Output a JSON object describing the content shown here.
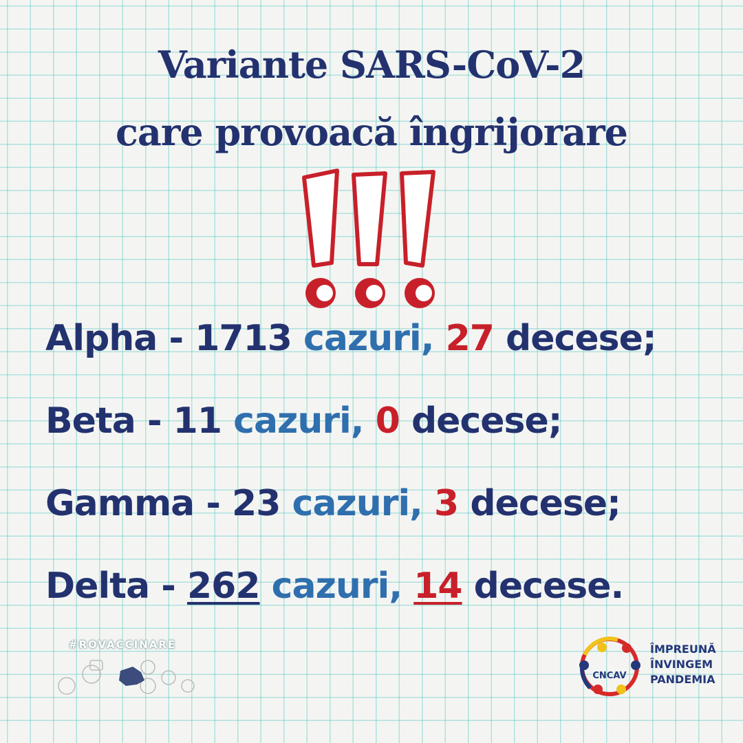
{
  "title": {
    "line1": "Variante SARS-CoV-2",
    "line2": "care provoacă îngrijorare"
  },
  "decoration_icon": "triple-exclamation-icon",
  "variants": [
    {
      "name": "Alpha",
      "sep": " - ",
      "cases": "1713",
      "cases_label": " cazuri,",
      "deaths": "27",
      "deaths_label": " decese;",
      "underlined": false
    },
    {
      "name": "Beta",
      "sep": " - ",
      "cases": "11",
      "cases_label": " cazuri,",
      "deaths": "0",
      "deaths_label": " decese;",
      "underlined": false
    },
    {
      "name": "Gamma",
      "sep": " - ",
      "cases": "23",
      "cases_label": " cazuri,",
      "deaths": "3",
      "deaths_label": " decese;",
      "underlined": false
    },
    {
      "name": "Delta",
      "sep": " - ",
      "cases": "262",
      "cases_label": " cazuri,",
      "deaths": "14",
      "deaths_label": " decese.",
      "underlined": true
    }
  ],
  "footer": {
    "hashtag": "#ROVACCINARE",
    "logo_text": "CNCAV",
    "slogan": [
      "ÎMPREUNĂ",
      "ÎNVINGEM",
      "PANDEMIA"
    ]
  },
  "colors": {
    "navy": "#23326f",
    "blue": "#2f6fae",
    "red": "#c8202a",
    "grid": "#5ac8c8"
  }
}
